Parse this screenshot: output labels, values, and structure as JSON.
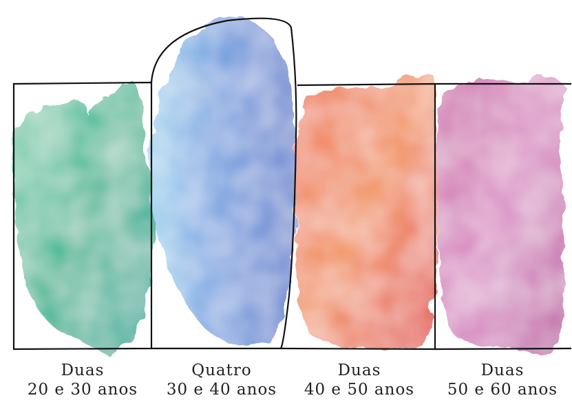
{
  "columns": [
    {
      "count": "Duas",
      "range": "20 e 30 anos"
    },
    {
      "count": "Quatro",
      "range": "30 e 40 anos"
    },
    {
      "count": "Duas",
      "range": "40 e 50 anos"
    },
    {
      "count": "Duas",
      "range": "50 e 60 anos"
    }
  ]
}
